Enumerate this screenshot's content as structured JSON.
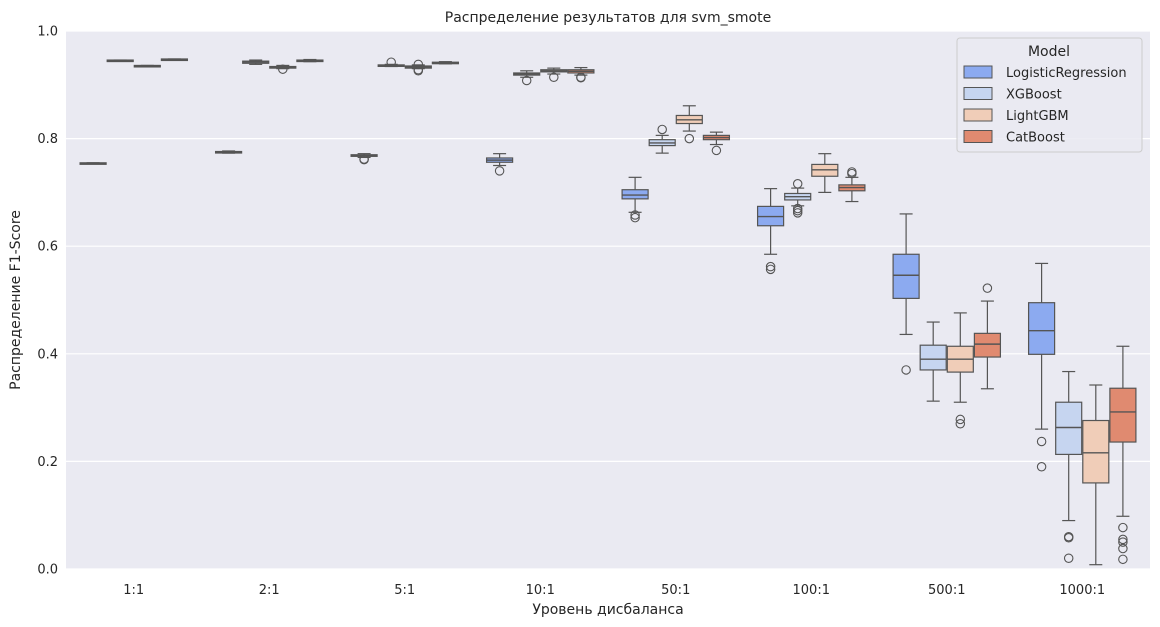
{
  "chart_data": {
    "type": "boxplot",
    "title": "Распределение результатов для svm_smote",
    "xlabel": "Уровень дисбаланса",
    "ylabel": "Распределение F1-Score",
    "ylim": [
      0,
      1.0
    ],
    "yticks": [
      "0.0",
      "0.2",
      "0.4",
      "0.6",
      "0.8",
      "1.0"
    ],
    "grid": true,
    "legend_position": "top-right",
    "legend_title": "Model",
    "categories": [
      "1:1",
      "2:1",
      "5:1",
      "10:1",
      "50:1",
      "100:1",
      "500:1",
      "1000:1"
    ],
    "series": [
      {
        "name": "LogisticRegression",
        "color": "#8caaf0",
        "boxes": [
          {
            "q1": 0.753,
            "med": 0.754,
            "q3": 0.755,
            "wlo": 0.753,
            "whi": 0.755,
            "fliers": []
          },
          {
            "q1": 0.774,
            "med": 0.775,
            "q3": 0.776,
            "wlo": 0.773,
            "whi": 0.777,
            "fliers": []
          },
          {
            "q1": 0.767,
            "med": 0.769,
            "q3": 0.77,
            "wlo": 0.765,
            "whi": 0.772,
            "fliers": [
              0.761,
              0.762
            ]
          },
          {
            "q1": 0.756,
            "med": 0.76,
            "q3": 0.764,
            "wlo": 0.75,
            "whi": 0.772,
            "fliers": [
              0.74
            ]
          },
          {
            "q1": 0.688,
            "med": 0.695,
            "q3": 0.705,
            "wlo": 0.663,
            "whi": 0.728,
            "fliers": [
              0.658,
              0.653
            ]
          },
          {
            "q1": 0.638,
            "med": 0.655,
            "q3": 0.674,
            "wlo": 0.585,
            "whi": 0.707,
            "fliers": [
              0.562,
              0.557
            ]
          },
          {
            "q1": 0.503,
            "med": 0.546,
            "q3": 0.585,
            "wlo": 0.436,
            "whi": 0.66,
            "fliers": [
              0.37
            ]
          },
          {
            "q1": 0.399,
            "med": 0.443,
            "q3": 0.495,
            "wlo": 0.26,
            "whi": 0.568,
            "fliers": [
              0.237,
              0.19
            ]
          }
        ]
      },
      {
        "name": "XGBoost",
        "color": "#c6d5f0",
        "boxes": [
          {
            "q1": 0.944,
            "med": 0.945,
            "q3": 0.946,
            "wlo": 0.944,
            "whi": 0.946,
            "fliers": []
          },
          {
            "q1": 0.94,
            "med": 0.942,
            "q3": 0.944,
            "wlo": 0.938,
            "whi": 0.946,
            "fliers": []
          },
          {
            "q1": 0.935,
            "med": 0.936,
            "q3": 0.937,
            "wlo": 0.934,
            "whi": 0.938,
            "fliers": [
              0.942
            ]
          },
          {
            "q1": 0.918,
            "med": 0.92,
            "q3": 0.922,
            "wlo": 0.914,
            "whi": 0.926,
            "fliers": [
              0.908
            ]
          },
          {
            "q1": 0.787,
            "med": 0.792,
            "q3": 0.798,
            "wlo": 0.773,
            "whi": 0.806,
            "fliers": [
              0.817
            ]
          },
          {
            "q1": 0.686,
            "med": 0.692,
            "q3": 0.698,
            "wlo": 0.675,
            "whi": 0.708,
            "fliers": [
              0.716,
              0.67,
              0.666,
              0.662
            ]
          },
          {
            "q1": 0.37,
            "med": 0.39,
            "q3": 0.416,
            "wlo": 0.312,
            "whi": 0.459,
            "fliers": []
          },
          {
            "q1": 0.213,
            "med": 0.263,
            "q3": 0.31,
            "wlo": 0.09,
            "whi": 0.367,
            "fliers": [
              0.06,
              0.058,
              0.02
            ]
          }
        ]
      },
      {
        "name": "LightGBM",
        "color": "#f0cdb8",
        "boxes": [
          {
            "q1": 0.934,
            "med": 0.935,
            "q3": 0.936,
            "wlo": 0.934,
            "whi": 0.936,
            "fliers": []
          },
          {
            "q1": 0.931,
            "med": 0.932,
            "q3": 0.934,
            "wlo": 0.93,
            "whi": 0.936,
            "fliers": [
              0.929
            ]
          },
          {
            "q1": 0.931,
            "med": 0.933,
            "q3": 0.935,
            "wlo": 0.93,
            "whi": 0.937,
            "fliers": [
              0.938,
              0.928,
              0.926
            ]
          },
          {
            "q1": 0.924,
            "med": 0.926,
            "q3": 0.928,
            "wlo": 0.92,
            "whi": 0.931,
            "fliers": [
              0.914
            ]
          },
          {
            "q1": 0.828,
            "med": 0.835,
            "q3": 0.843,
            "wlo": 0.814,
            "whi": 0.861,
            "fliers": [
              0.8
            ]
          },
          {
            "q1": 0.73,
            "med": 0.742,
            "q3": 0.752,
            "wlo": 0.7,
            "whi": 0.772,
            "fliers": []
          },
          {
            "q1": 0.366,
            "med": 0.39,
            "q3": 0.414,
            "wlo": 0.31,
            "whi": 0.476,
            "fliers": [
              0.278,
              0.27
            ]
          },
          {
            "q1": 0.16,
            "med": 0.216,
            "q3": 0.276,
            "wlo": 0.008,
            "whi": 0.342,
            "fliers": []
          }
        ]
      },
      {
        "name": "CatBoost",
        "color": "#e08a70",
        "boxes": [
          {
            "q1": 0.946,
            "med": 0.947,
            "q3": 0.948,
            "wlo": 0.946,
            "whi": 0.948,
            "fliers": []
          },
          {
            "q1": 0.944,
            "med": 0.945,
            "q3": 0.946,
            "wlo": 0.943,
            "whi": 0.947,
            "fliers": []
          },
          {
            "q1": 0.94,
            "med": 0.941,
            "q3": 0.942,
            "wlo": 0.939,
            "whi": 0.943,
            "fliers": []
          },
          {
            "q1": 0.922,
            "med": 0.925,
            "q3": 0.928,
            "wlo": 0.918,
            "whi": 0.932,
            "fliers": [
              0.914,
              0.913
            ]
          },
          {
            "q1": 0.798,
            "med": 0.802,
            "q3": 0.806,
            "wlo": 0.789,
            "whi": 0.812,
            "fliers": [
              0.778
            ]
          },
          {
            "q1": 0.703,
            "med": 0.709,
            "q3": 0.714,
            "wlo": 0.683,
            "whi": 0.728,
            "fliers": [
              0.738,
              0.735
            ]
          },
          {
            "q1": 0.394,
            "med": 0.418,
            "q3": 0.438,
            "wlo": 0.335,
            "whi": 0.498,
            "fliers": [
              0.522
            ]
          },
          {
            "q1": 0.236,
            "med": 0.292,
            "q3": 0.336,
            "wlo": 0.098,
            "whi": 0.414,
            "fliers": [
              0.077,
              0.055,
              0.05,
              0.038,
              0.018
            ]
          }
        ]
      }
    ]
  }
}
